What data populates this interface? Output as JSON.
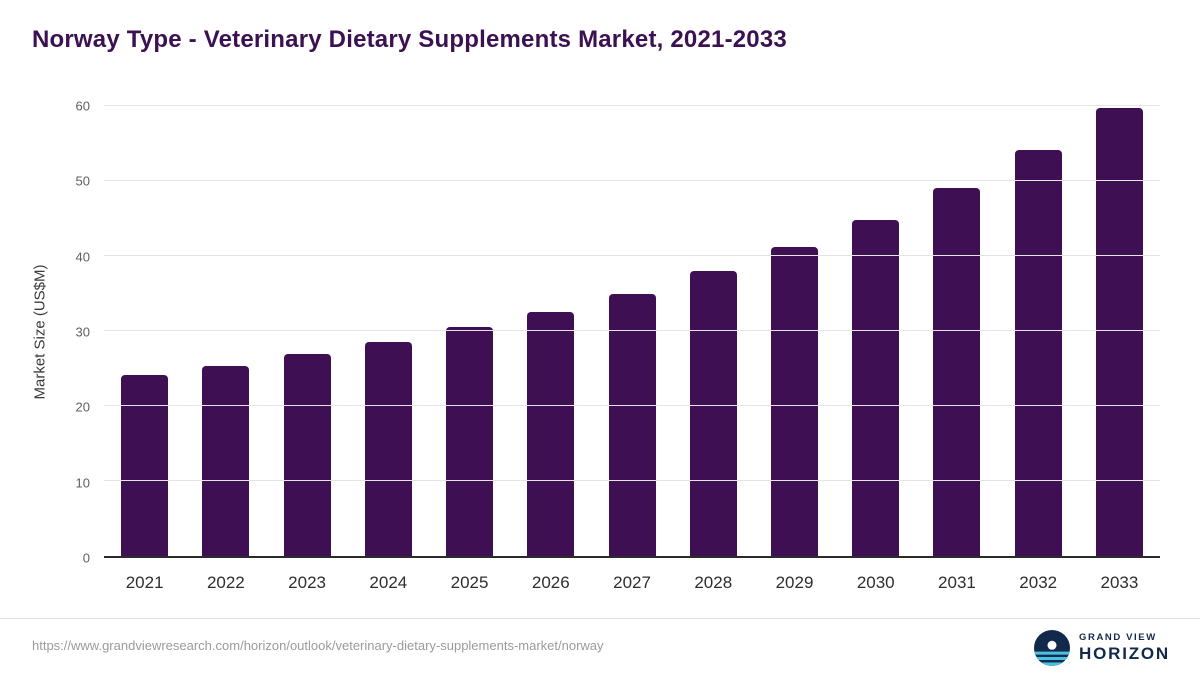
{
  "title": "Norway Type - Veterinary Dietary Supplements Market, 2021-2033",
  "footer": {
    "source_url": "https://www.grandviewresearch.com/horizon/outlook/veterinary-dietary-supplements-market/norway",
    "logo": {
      "line1": "GRAND VIEW",
      "line2": "HORIZON"
    }
  },
  "chart_data": {
    "type": "bar",
    "title": "Norway Type - Veterinary Dietary Supplements Market, 2021-2033",
    "categories": [
      "2021",
      "2022",
      "2023",
      "2024",
      "2025",
      "2026",
      "2027",
      "2028",
      "2029",
      "2030",
      "2031",
      "2032",
      "2033"
    ],
    "values": [
      24.1,
      25.3,
      26.9,
      28.5,
      30.5,
      32.6,
      35.0,
      38.0,
      41.2,
      44.8,
      49.1,
      54.1,
      59.7
    ],
    "xlabel": "",
    "ylabel": "Market Size (US$M)",
    "ylim": [
      0,
      60
    ],
    "yticks": [
      0,
      10,
      20,
      30,
      40,
      50,
      60
    ],
    "bar_color": "#3e1053",
    "grid": "horizontal",
    "legend": "none"
  }
}
